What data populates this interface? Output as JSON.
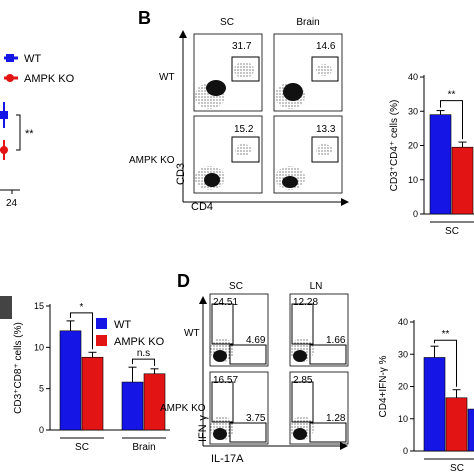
{
  "panels": {
    "A": {
      "legend": [
        "WT",
        "AMPK KO"
      ],
      "significance": "**",
      "x_tick": "24"
    },
    "B": {
      "letter": "B",
      "columns": [
        "SC",
        "Brain"
      ],
      "rows": [
        "WT",
        "AMPK KO"
      ],
      "gate_values": [
        [
          "31.7",
          "14.6"
        ],
        [
          "15.2",
          "13.3"
        ]
      ],
      "x_axis": "CD4",
      "y_axis": "CD3"
    },
    "D": {
      "letter": "D",
      "columns": [
        "SC",
        "LN"
      ],
      "rows": [
        "WT",
        "AMPK KO"
      ],
      "quadrant_values": [
        [
          [
            "24.51",
            "4.69"
          ],
          [
            "12.28",
            "1.66"
          ]
        ],
        [
          [
            "16.57",
            "3.75"
          ],
          [
            "2.85",
            "1.28"
          ]
        ]
      ],
      "x_axis": "IL-17A",
      "y_axis": "IFN-γ"
    }
  },
  "colors": {
    "wt": "#1515e6",
    "ko": "#e31414"
  },
  "chart_data": [
    {
      "id": "B-bar",
      "type": "bar",
      "ylabel": "CD3⁺CD4⁺ cells (%)",
      "ylim": [
        0,
        40
      ],
      "yticks": [
        0,
        10,
        20,
        30,
        40
      ],
      "categories": [
        "SC"
      ],
      "series": [
        {
          "name": "WT",
          "values": [
            29
          ],
          "errors": [
            1.2
          ]
        },
        {
          "name": "AMPK KO",
          "values": [
            19.5
          ],
          "errors": [
            1.5
          ]
        }
      ],
      "annotations": [
        "**"
      ]
    },
    {
      "id": "C-bar",
      "type": "bar",
      "ylabel": "CD3⁺CD8⁺ cells (%)",
      "ylim": [
        0,
        15
      ],
      "yticks": [
        0,
        5,
        10,
        15
      ],
      "categories": [
        "SC",
        "Brain"
      ],
      "series": [
        {
          "name": "WT",
          "values": [
            12,
            5.8
          ],
          "errors": [
            1.2,
            1.8
          ]
        },
        {
          "name": "AMPK KO",
          "values": [
            8.8,
            6.8
          ],
          "errors": [
            0.6,
            0.6
          ]
        }
      ],
      "annotations": [
        "*",
        "n.s"
      ],
      "legend": [
        "WT",
        "AMPK KO"
      ]
    },
    {
      "id": "D-bar",
      "type": "bar",
      "ylabel": "CD4+IFN-γ %",
      "ylim": [
        0,
        40
      ],
      "yticks": [
        0,
        10,
        20,
        30,
        40
      ],
      "categories": [
        "SC"
      ],
      "series": [
        {
          "name": "WT",
          "values": [
            29
          ],
          "errors": [
            3.5
          ]
        },
        {
          "name": "AMPK KO",
          "values": [
            16.5
          ],
          "errors": [
            2.5
          ]
        },
        {
          "name": "",
          "values": [
            13
          ],
          "errors": [
            0
          ]
        }
      ],
      "annotations": [
        "**"
      ]
    }
  ]
}
